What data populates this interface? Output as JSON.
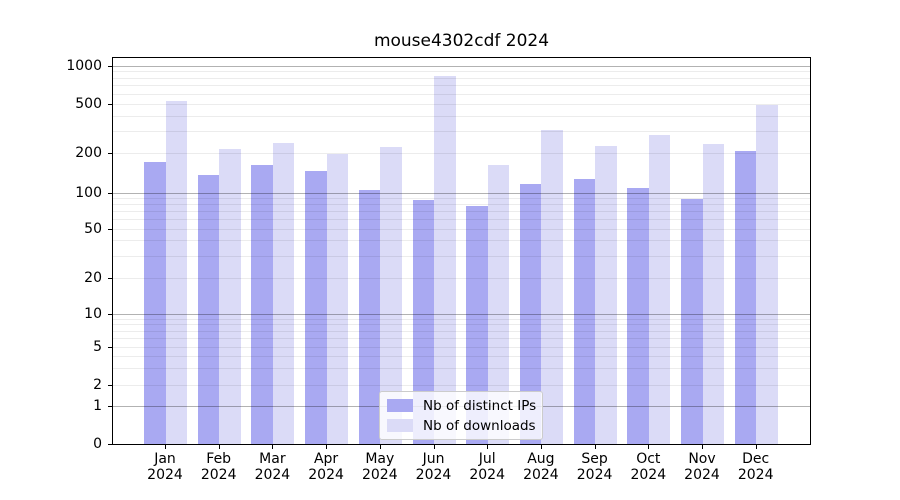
{
  "title": "mouse4302cdf 2024",
  "chart_data": {
    "type": "bar",
    "title": "mouse4302cdf 2024",
    "categories": [
      "Jan",
      "Feb",
      "Mar",
      "Apr",
      "May",
      "Jun",
      "Jul",
      "Aug",
      "Sep",
      "Oct",
      "Nov",
      "Dec"
    ],
    "year_label": "2024",
    "series": [
      {
        "name": "Nb of distinct IPs",
        "color": "#a9a9f2",
        "values": [
          172,
          137,
          163,
          146,
          105,
          87,
          78,
          118,
          129,
          110,
          89,
          209
        ]
      },
      {
        "name": "Nb of downloads",
        "color": "#dbdbf7",
        "values": [
          535,
          216,
          245,
          199,
          224,
          830,
          164,
          310,
          232,
          285,
          237,
          495
        ]
      }
    ],
    "yscale": "symlog",
    "y_ticks": [
      0,
      1,
      2,
      5,
      10,
      20,
      50,
      100,
      200,
      500,
      1000
    ],
    "ylim": [
      0,
      1080
    ],
    "xlabel": "",
    "ylabel": "",
    "grid": true,
    "legend_position": "lower center"
  }
}
